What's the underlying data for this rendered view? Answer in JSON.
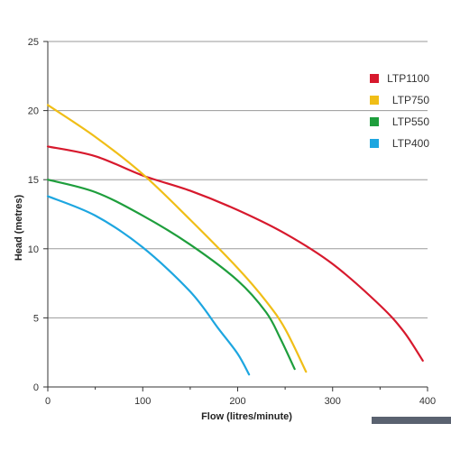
{
  "chart_data": {
    "type": "line",
    "title": "",
    "xlabel": "Flow (litres/minute)",
    "ylabel": "Head (metres)",
    "xlim": [
      0,
      400
    ],
    "ylim": [
      0,
      25
    ],
    "x_ticks": [
      0,
      100,
      200,
      300,
      400
    ],
    "y_ticks": [
      0,
      5,
      10,
      15,
      20,
      25
    ],
    "grid": "horizontal",
    "legend_position": "top-right",
    "series": [
      {
        "name": "LTP1100",
        "color": "#d7192d",
        "points": [
          [
            0,
            17.4
          ],
          [
            50,
            16.7
          ],
          [
            100,
            15.3
          ],
          [
            150,
            14.2
          ],
          [
            200,
            12.8
          ],
          [
            250,
            11.1
          ],
          [
            300,
            8.9
          ],
          [
            350,
            5.9
          ],
          [
            375,
            4.0
          ],
          [
            395,
            1.9
          ]
        ]
      },
      {
        "name": "LTP750",
        "color": "#f0be17",
        "points": [
          [
            0,
            20.4
          ],
          [
            50,
            18.1
          ],
          [
            100,
            15.4
          ],
          [
            150,
            12.1
          ],
          [
            200,
            8.6
          ],
          [
            230,
            6.2
          ],
          [
            250,
            4.2
          ],
          [
            272,
            1.1
          ]
        ]
      },
      {
        "name": "LTP550",
        "color": "#1e9e3c",
        "points": [
          [
            0,
            15.0
          ],
          [
            50,
            14.1
          ],
          [
            100,
            12.4
          ],
          [
            150,
            10.3
          ],
          [
            200,
            7.7
          ],
          [
            230,
            5.4
          ],
          [
            245,
            3.5
          ],
          [
            260,
            1.3
          ]
        ]
      },
      {
        "name": "LTP400",
        "color": "#1da6e0",
        "points": [
          [
            0,
            13.8
          ],
          [
            50,
            12.4
          ],
          [
            100,
            10.1
          ],
          [
            150,
            6.9
          ],
          [
            180,
            4.2
          ],
          [
            200,
            2.4
          ],
          [
            212,
            0.9
          ]
        ]
      }
    ]
  }
}
